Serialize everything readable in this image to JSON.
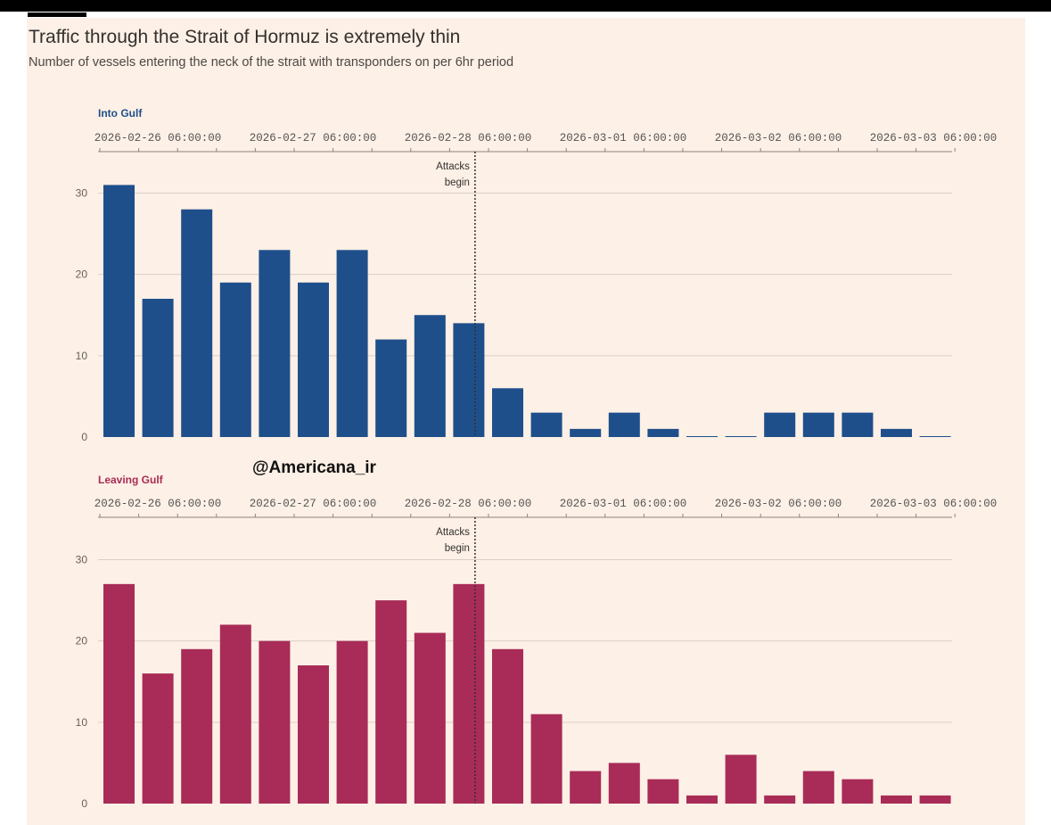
{
  "title": "Traffic through the Strait of Hormuz is extremely thin",
  "subtitle": "Number of vessels entering the neck of the strait with transponders on per 6hr period",
  "watermark": "@Americana_ir",
  "colors": {
    "into": "#1f4f8b",
    "leaving": "#a82c57",
    "background": "#fdf0e6",
    "grid": "#d9d0c8"
  },
  "chart_data": [
    {
      "type": "bar",
      "title": "Into Gulf",
      "x_tick_labels": [
        "2026-02-26 06:00:00",
        "2026-02-27 06:00:00",
        "2026-02-28 06:00:00",
        "2026-03-01 06:00:00",
        "2026-03-02 06:00:00",
        "2026-03-03 06:00:00"
      ],
      "y_ticks": [
        0,
        10,
        20,
        30
      ],
      "ylim": [
        0,
        32
      ],
      "values": [
        31,
        17,
        28,
        19,
        23,
        19,
        23,
        12,
        15,
        14,
        6,
        3,
        1,
        3,
        1,
        0,
        0,
        3,
        3,
        3,
        1,
        0
      ],
      "annotation": {
        "line1": "Attacks",
        "line2": "begin",
        "after_bar_index": 9
      }
    },
    {
      "type": "bar",
      "title": "Leaving Gulf",
      "x_tick_labels": [
        "2026-02-26 06:00:00",
        "2026-02-27 06:00:00",
        "2026-02-28 06:00:00",
        "2026-03-01 06:00:00",
        "2026-03-02 06:00:00",
        "2026-03-03 06:00:00"
      ],
      "y_ticks": [
        0,
        10,
        20,
        30
      ],
      "ylim": [
        0,
        32
      ],
      "values": [
        27,
        16,
        19,
        22,
        20,
        17,
        20,
        25,
        21,
        27,
        19,
        11,
        4,
        5,
        3,
        1,
        6,
        1,
        4,
        3,
        1,
        1
      ],
      "annotation": {
        "line1": "Attacks",
        "line2": "begin",
        "after_bar_index": 9
      }
    }
  ]
}
